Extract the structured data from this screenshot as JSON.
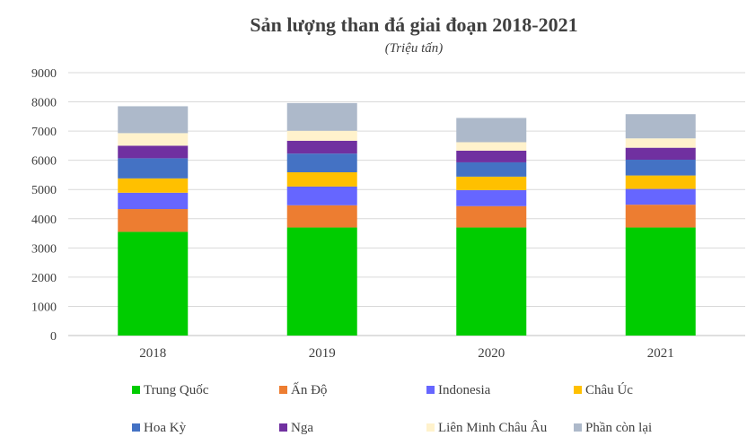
{
  "chart_data": {
    "type": "bar",
    "stacked": true,
    "title": "Sản lượng than đá giai đoạn 2018-2021",
    "subtitle": "(Triệu tấn)",
    "categories": [
      "2018",
      "2019",
      "2020",
      "2021"
    ],
    "ylim": [
      0,
      9000
    ],
    "yticks": [
      "0",
      "1000",
      "2000",
      "3000",
      "4000",
      "5000",
      "6000",
      "7000",
      "8000",
      "9000"
    ],
    "grid": true,
    "legend_position": "bottom",
    "series": [
      {
        "name": "Trung Quốc",
        "color": "#00cc00",
        "values": [
          3550,
          3700,
          3700,
          3700
        ]
      },
      {
        "name": "Ấn Độ",
        "color": "#ed7d31",
        "values": [
          780,
          760,
          730,
          780
        ]
      },
      {
        "name": "Indonesia",
        "color": "#6666ff",
        "values": [
          560,
          640,
          550,
          540
        ]
      },
      {
        "name": "Châu Úc",
        "color": "#ffc000",
        "values": [
          490,
          490,
          460,
          460
        ]
      },
      {
        "name": "Hoa Kỳ",
        "color": "#4472c4",
        "values": [
          690,
          640,
          490,
          540
        ]
      },
      {
        "name": "Nga",
        "color": "#7030a0",
        "values": [
          430,
          440,
          400,
          410
        ]
      },
      {
        "name": "Liên Minh Châu Âu",
        "color": "#fff2cc",
        "values": [
          430,
          340,
          290,
          320
        ]
      },
      {
        "name": "Phần còn lại",
        "color": "#adb9ca",
        "values": [
          920,
          950,
          830,
          830
        ]
      }
    ]
  }
}
